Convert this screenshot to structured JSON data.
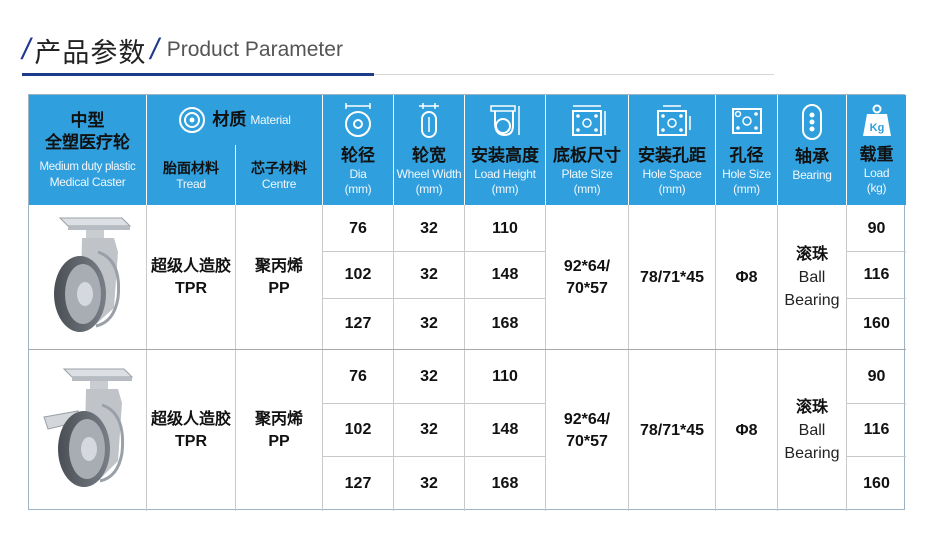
{
  "header": {
    "title_cn": "产品参数",
    "title_en": "Product Parameter"
  },
  "columns": {
    "product": {
      "cn_line1": "中型",
      "cn_line2": "全塑医疗轮",
      "en_line1": "Medium duty plastic",
      "en_line2": "Medical Caster"
    },
    "material": {
      "cn": "材质",
      "en": "Material"
    },
    "tread": {
      "cn": "胎面材料",
      "en": "Tread"
    },
    "centre": {
      "cn": "芯子材料",
      "en": "Centre"
    },
    "dia": {
      "cn": "轮径",
      "en": "Dia",
      "unit": "(mm)"
    },
    "width": {
      "cn": "轮宽",
      "en": "Wheel Width",
      "unit": "(mm)"
    },
    "height": {
      "cn": "安装高度",
      "en": "Load Height",
      "unit": "(mm)"
    },
    "plate": {
      "cn": "底板尺寸",
      "en": "Plate Size",
      "unit": "(mm)"
    },
    "hole_space": {
      "cn": "安装孔距",
      "en": "Hole Space",
      "unit": "(mm)"
    },
    "hole_size": {
      "cn": "孔径",
      "en": "Hole Size",
      "unit": "(mm)"
    },
    "bearing": {
      "cn": "轴承",
      "en": "Bearing"
    },
    "load": {
      "cn": "载重",
      "en": "Load",
      "unit": "(kg)",
      "icon_text": "Kg"
    }
  },
  "groups": [
    {
      "image": "swivel-caster-image",
      "tread_cn": "超级人造胶",
      "tread_en": "TPR",
      "centre_cn": "聚丙烯",
      "centre_en": "PP",
      "plate": [
        "92*64/",
        "70*57"
      ],
      "hole_space": "78/71*45",
      "hole_size": "Φ8",
      "bearing": [
        "滚珠",
        "Ball",
        "Bearing"
      ],
      "rows": [
        {
          "dia": "76",
          "width": "32",
          "height": "110",
          "load": "90"
        },
        {
          "dia": "102",
          "width": "32",
          "height": "148",
          "load": "116"
        },
        {
          "dia": "127",
          "width": "32",
          "height": "168",
          "load": "160"
        }
      ]
    },
    {
      "image": "brake-caster-image",
      "tread_cn": "超级人造胶",
      "tread_en": "TPR",
      "centre_cn": "聚丙烯",
      "centre_en": "PP",
      "plate": [
        "92*64/",
        "70*57"
      ],
      "hole_space": "78/71*45",
      "hole_size": "Φ8",
      "bearing": [
        "滚珠",
        "Ball",
        "Bearing"
      ],
      "rows": [
        {
          "dia": "76",
          "width": "32",
          "height": "110",
          "load": "90"
        },
        {
          "dia": "102",
          "width": "32",
          "height": "148",
          "load": "116"
        },
        {
          "dia": "127",
          "width": "32",
          "height": "168",
          "load": "160"
        }
      ]
    }
  ],
  "colors": {
    "header_bg": "#2f9fdd",
    "accent": "#1e3a8a",
    "grid": "#c9c9c9"
  }
}
